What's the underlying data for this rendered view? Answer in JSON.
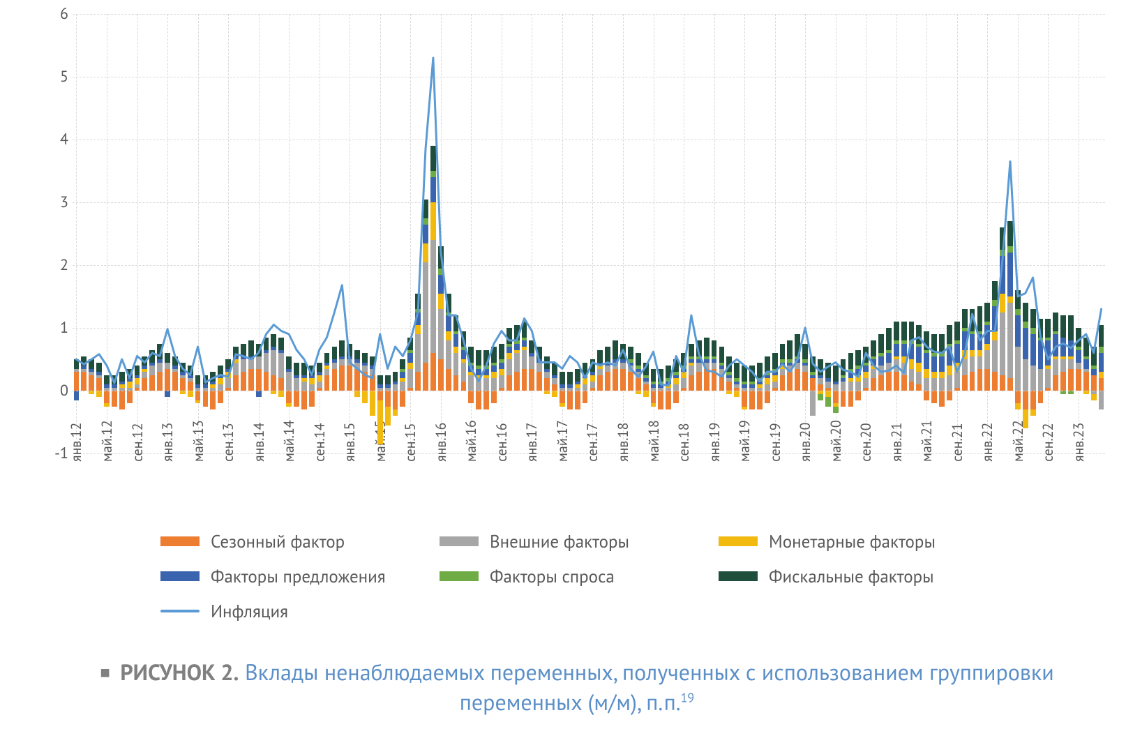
{
  "chart": {
    "type": "stacked-bar-with-line",
    "background_color": "#ffffff",
    "grid_color": "#d9d9d9",
    "y_axis": {
      "min": -1,
      "max": 6,
      "ticks": [
        -1,
        0,
        1,
        2,
        3,
        4,
        5,
        6
      ],
      "label_fontsize": 22,
      "label_color": "#595959"
    },
    "x_axis": {
      "labels": [
        "янв.12",
        "май.12",
        "сен.12",
        "янв.13",
        "май.13",
        "сен.13",
        "янв.14",
        "май.14",
        "сен.14",
        "янв.15",
        "май.15",
        "сен.15",
        "янв.16",
        "май.16",
        "сен.16",
        "янв.17",
        "май.17",
        "сен.17",
        "янв.18",
        "май.18",
        "сен.18",
        "янв.19",
        "май.19",
        "сен.19",
        "янв.20",
        "май.20",
        "сен.20",
        "янв.21",
        "май.21",
        "сен.21",
        "янв.22",
        "май.22",
        "сен.22",
        "янв.23"
      ],
      "label_fontsize": 20,
      "label_color": "#595959",
      "label_step_months": 4
    },
    "series_colors": {
      "seasonal": "#ed7d31",
      "external": "#a6a6a6",
      "monetary": "#f2b90f",
      "supply": "#3a64ad",
      "demand": "#6fac46",
      "fiscal": "#1f4e3d",
      "inflation": "#5b9bd5"
    },
    "series_labels": {
      "seasonal": "Сезонный фактор",
      "external": "Внешние факторы",
      "monetary": "Монетарные факторы",
      "supply": "Факторы предложения",
      "demand": "Факторы спроса",
      "fiscal": "Фискальные факторы",
      "inflation": "Инфляция"
    },
    "line_width": 3,
    "bar_width_ratio": 0.72,
    "n_points": 136,
    "data": {
      "seasonal": [
        0.3,
        0.3,
        0.25,
        0.2,
        -0.2,
        -0.25,
        -0.3,
        -0.2,
        0.05,
        0.2,
        0.25,
        0.3,
        0.35,
        0.3,
        0.2,
        0.15,
        -0.15,
        -0.25,
        -0.3,
        -0.2,
        0.05,
        0.25,
        0.3,
        0.35,
        0.35,
        0.3,
        0.25,
        0.2,
        -0.2,
        -0.25,
        -0.3,
        -0.25,
        0.05,
        0.25,
        0.35,
        0.4,
        0.4,
        0.35,
        0.3,
        0.25,
        -0.15,
        -0.25,
        -0.3,
        -0.25,
        0.05,
        0.3,
        0.45,
        0.6,
        0.5,
        0.35,
        0.25,
        0.15,
        -0.2,
        -0.3,
        -0.3,
        -0.2,
        0.05,
        0.25,
        0.3,
        0.35,
        0.35,
        0.3,
        0.2,
        0.1,
        -0.2,
        -0.3,
        -0.3,
        -0.2,
        0.05,
        0.25,
        0.3,
        0.35,
        0.35,
        0.3,
        0.2,
        0.1,
        -0.2,
        -0.3,
        -0.3,
        -0.2,
        0.05,
        0.25,
        0.3,
        0.35,
        0.35,
        0.25,
        0.15,
        0.05,
        -0.25,
        -0.3,
        -0.3,
        -0.2,
        0.05,
        0.25,
        0.3,
        0.35,
        0.3,
        0.2,
        0.1,
        0.05,
        -0.2,
        -0.25,
        -0.25,
        -0.15,
        0.05,
        0.2,
        0.25,
        0.3,
        0.3,
        0.25,
        0.15,
        0.1,
        -0.15,
        -0.2,
        -0.25,
        -0.15,
        0.05,
        0.25,
        0.3,
        0.35,
        0.35,
        0.3,
        0.25,
        0.2,
        -0.2,
        -0.3,
        -0.3,
        -0.2,
        0.05,
        0.25,
        0.3,
        0.35,
        0.35,
        0.3,
        0.25,
        0.2
      ],
      "external": [
        0.05,
        0.05,
        0.05,
        0.05,
        0.05,
        0.05,
        0.05,
        0.05,
        0.05,
        0.1,
        0.15,
        0.15,
        0.1,
        0.05,
        0.05,
        0.05,
        0.05,
        0.05,
        0.05,
        0.1,
        0.15,
        0.2,
        0.2,
        0.15,
        0.2,
        0.3,
        0.4,
        0.4,
        0.3,
        0.2,
        0.15,
        0.1,
        0.1,
        0.1,
        0.1,
        0.1,
        0.1,
        0.1,
        0.1,
        0.1,
        0.05,
        0.05,
        0.1,
        0.15,
        0.3,
        0.6,
        1.6,
        1.8,
        0.8,
        0.45,
        0.35,
        0.3,
        0.25,
        0.2,
        0.2,
        0.2,
        0.2,
        0.25,
        0.3,
        0.3,
        0.2,
        0.15,
        0.1,
        0.1,
        0.05,
        0.05,
        0.05,
        0.1,
        0.1,
        0.1,
        0.1,
        0.1,
        0.1,
        0.1,
        0.1,
        0.05,
        0.05,
        0.05,
        0.05,
        0.1,
        0.15,
        0.15,
        0.15,
        0.1,
        0.1,
        0.1,
        0.05,
        0.05,
        0.05,
        0.05,
        0.05,
        0.1,
        0.1,
        0.1,
        0.1,
        0.1,
        0.1,
        -0.4,
        0.1,
        0.1,
        0.1,
        0.15,
        0.15,
        0.15,
        0.15,
        0.15,
        0.15,
        0.15,
        0.2,
        0.2,
        0.2,
        0.2,
        0.2,
        0.2,
        0.2,
        0.25,
        0.25,
        0.25,
        0.25,
        0.2,
        0.3,
        0.5,
        1.0,
        1.2,
        0.7,
        0.5,
        0.4,
        0.35,
        0.3,
        0.25,
        0.2,
        0.15,
        0.1,
        0.05,
        -0.05,
        -0.3
      ],
      "monetary": [
        0.0,
        0.0,
        -0.05,
        -0.1,
        -0.05,
        0.0,
        0.05,
        0.1,
        0.1,
        0.05,
        0.0,
        0.0,
        0.0,
        0.0,
        -0.05,
        -0.1,
        -0.05,
        0.0,
        0.05,
        0.1,
        0.1,
        0.05,
        0.0,
        0.0,
        0.0,
        0.0,
        -0.05,
        -0.1,
        -0.05,
        0.0,
        0.05,
        0.1,
        0.1,
        0.05,
        0.0,
        0.0,
        0.0,
        -0.1,
        -0.2,
        -0.4,
        -0.7,
        -0.3,
        -0.1,
        0.05,
        0.1,
        0.15,
        0.3,
        0.6,
        0.25,
        0.15,
        0.1,
        0.05,
        0.05,
        0.05,
        0.05,
        0.1,
        0.1,
        0.1,
        0.05,
        0.05,
        0.0,
        0.0,
        -0.05,
        -0.1,
        -0.05,
        0.0,
        0.05,
        0.1,
        0.1,
        0.05,
        0.0,
        0.0,
        0.0,
        0.0,
        -0.05,
        -0.1,
        -0.05,
        0.0,
        0.05,
        0.1,
        0.1,
        0.05,
        0.0,
        0.0,
        0.0,
        0.0,
        -0.05,
        -0.1,
        -0.05,
        0.0,
        0.05,
        0.1,
        0.1,
        0.05,
        0.0,
        0.0,
        0.0,
        0.0,
        -0.05,
        -0.1,
        -0.05,
        0.0,
        0.05,
        0.1,
        0.1,
        0.05,
        0.0,
        0.0,
        0.05,
        0.1,
        0.15,
        0.15,
        0.15,
        0.1,
        0.1,
        0.15,
        0.15,
        0.15,
        0.1,
        0.1,
        0.1,
        0.15,
        0.3,
        0.1,
        -0.1,
        -0.3,
        -0.1,
        0.0,
        0.05,
        0.05,
        0.05,
        0.05,
        0.0,
        -0.05,
        -0.1,
        0.1
      ],
      "supply": [
        -0.15,
        0.05,
        0.05,
        0.05,
        0.05,
        0.05,
        0.05,
        0.05,
        0.05,
        0.05,
        0.05,
        0.05,
        -0.1,
        0.05,
        0.05,
        0.05,
        0.05,
        0.05,
        0.05,
        0.05,
        0.05,
        0.05,
        0.05,
        0.05,
        -0.1,
        0.05,
        0.05,
        0.05,
        0.05,
        0.05,
        0.05,
        0.05,
        0.05,
        0.05,
        0.05,
        0.05,
        0.05,
        0.05,
        0.05,
        0.05,
        0.05,
        0.05,
        0.05,
        0.1,
        0.15,
        0.2,
        0.3,
        0.4,
        0.3,
        0.25,
        0.2,
        0.15,
        0.1,
        0.1,
        0.1,
        0.1,
        0.1,
        0.1,
        0.1,
        0.1,
        0.05,
        0.05,
        0.05,
        0.05,
        0.05,
        0.05,
        0.05,
        0.05,
        0.05,
        0.05,
        0.05,
        0.05,
        0.05,
        0.05,
        0.05,
        0.05,
        0.05,
        0.05,
        0.05,
        0.05,
        0.05,
        0.05,
        0.05,
        0.05,
        0.05,
        0.05,
        0.05,
        0.05,
        0.05,
        0.05,
        0.05,
        0.05,
        0.05,
        0.05,
        0.05,
        0.05,
        0.05,
        0.05,
        0.05,
        0.05,
        0.05,
        0.05,
        0.1,
        0.1,
        0.1,
        0.1,
        0.15,
        0.15,
        0.2,
        0.2,
        0.25,
        0.25,
        0.25,
        0.25,
        0.25,
        0.3,
        0.3,
        0.3,
        0.25,
        0.25,
        0.3,
        0.4,
        0.6,
        0.7,
        0.5,
        0.5,
        0.5,
        0.45,
        0.4,
        0.35,
        0.3,
        0.25,
        0.2,
        0.15,
        0.1,
        0.3
      ],
      "demand": [
        0.0,
        0.0,
        0.0,
        0.0,
        0.0,
        0.0,
        0.0,
        0.0,
        0.0,
        0.0,
        0.0,
        0.0,
        0.0,
        0.0,
        0.0,
        0.0,
        0.0,
        0.0,
        0.0,
        0.0,
        0.0,
        0.0,
        0.0,
        0.0,
        0.0,
        0.0,
        0.0,
        0.0,
        0.0,
        0.0,
        0.0,
        0.0,
        0.0,
        0.0,
        0.0,
        0.0,
        0.0,
        0.0,
        0.0,
        0.0,
        0.0,
        0.0,
        0.0,
        0.05,
        0.05,
        0.05,
        0.1,
        0.1,
        0.1,
        0.05,
        0.05,
        0.05,
        0.05,
        0.05,
        0.05,
        0.05,
        0.05,
        0.05,
        0.05,
        0.05,
        0.0,
        0.0,
        0.0,
        0.0,
        0.0,
        0.0,
        0.0,
        0.0,
        0.0,
        0.0,
        0.0,
        0.0,
        0.0,
        0.05,
        0.05,
        0.05,
        0.05,
        0.05,
        0.05,
        0.05,
        0.05,
        0.05,
        0.05,
        0.05,
        0.05,
        0.05,
        0.05,
        0.05,
        0.05,
        0.05,
        0.05,
        0.05,
        0.05,
        0.05,
        0.05,
        0.05,
        0.05,
        0.05,
        -0.1,
        -0.15,
        -0.1,
        0.05,
        0.05,
        0.05,
        0.05,
        0.05,
        0.05,
        0.05,
        0.05,
        0.05,
        0.05,
        0.05,
        0.05,
        0.05,
        0.05,
        0.05,
        0.05,
        0.05,
        0.05,
        0.05,
        0.05,
        0.1,
        0.1,
        0.1,
        0.1,
        0.1,
        0.1,
        0.05,
        0.05,
        0.05,
        -0.05,
        -0.05,
        0.05,
        0.05,
        0.05,
        0.1
      ],
      "fiscal": [
        0.15,
        0.15,
        0.15,
        0.15,
        0.15,
        0.15,
        0.15,
        0.15,
        0.15,
        0.15,
        0.2,
        0.25,
        0.15,
        0.15,
        0.15,
        0.15,
        0.15,
        0.15,
        0.15,
        0.15,
        0.15,
        0.15,
        0.2,
        0.25,
        0.2,
        0.2,
        0.2,
        0.2,
        0.2,
        0.2,
        0.2,
        0.15,
        0.15,
        0.15,
        0.2,
        0.25,
        0.2,
        0.15,
        0.15,
        0.15,
        0.15,
        0.15,
        0.15,
        0.15,
        0.2,
        0.25,
        0.3,
        0.4,
        0.35,
        0.3,
        0.25,
        0.25,
        0.25,
        0.25,
        0.25,
        0.25,
        0.25,
        0.25,
        0.25,
        0.25,
        0.2,
        0.2,
        0.2,
        0.2,
        0.2,
        0.2,
        0.2,
        0.2,
        0.2,
        0.2,
        0.25,
        0.3,
        0.25,
        0.2,
        0.2,
        0.2,
        0.2,
        0.2,
        0.2,
        0.2,
        0.2,
        0.2,
        0.25,
        0.3,
        0.25,
        0.25,
        0.25,
        0.25,
        0.25,
        0.25,
        0.25,
        0.25,
        0.25,
        0.25,
        0.3,
        0.35,
        0.25,
        0.25,
        0.25,
        0.25,
        0.25,
        0.25,
        0.25,
        0.25,
        0.25,
        0.25,
        0.3,
        0.35,
        0.3,
        0.3,
        0.3,
        0.3,
        0.3,
        0.3,
        0.3,
        0.3,
        0.3,
        0.3,
        0.35,
        0.4,
        0.3,
        0.3,
        0.35,
        0.4,
        0.3,
        0.3,
        0.3,
        0.3,
        0.3,
        0.3,
        0.35,
        0.4,
        0.3,
        0.3,
        0.3,
        0.35
      ],
      "inflation": [
        0.5,
        0.42,
        0.5,
        0.58,
        0.4,
        0.12,
        0.5,
        0.2,
        0.55,
        0.45,
        0.6,
        0.55,
        0.98,
        0.55,
        0.35,
        0.25,
        0.7,
        0.13,
        0.2,
        0.25,
        0.22,
        0.58,
        0.55,
        0.5,
        0.6,
        0.9,
        1.05,
        0.95,
        0.9,
        0.65,
        0.5,
        0.25,
        0.65,
        0.85,
        1.25,
        1.68,
        0.45,
        0.35,
        0.25,
        0.2,
        0.9,
        0.35,
        0.7,
        0.55,
        0.8,
        1.25,
        3.85,
        5.3,
        2.22,
        1.2,
        1.2,
        0.8,
        0.35,
        0.15,
        0.4,
        0.75,
        0.95,
        0.8,
        0.8,
        1.15,
        0.95,
        0.45,
        0.45,
        0.45,
        0.35,
        0.55,
        0.45,
        0.2,
        0.45,
        0.4,
        0.45,
        0.4,
        0.65,
        0.35,
        0.22,
        0.38,
        0.62,
        0.1,
        0.08,
        0.55,
        0.3,
        1.2,
        0.58,
        0.32,
        0.3,
        0.22,
        0.4,
        0.5,
        0.4,
        0.3,
        0.15,
        0.3,
        0.3,
        0.42,
        0.3,
        0.5,
        1.0,
        0.43,
        0.3,
        0.38,
        0.45,
        0.33,
        0.3,
        0.22,
        0.6,
        0.4,
        0.3,
        0.32,
        0.4,
        0.28,
        0.8,
        0.85,
        0.7,
        0.62,
        0.6,
        0.7,
        0.3,
        0.58,
        1.22,
        0.8,
        0.95,
        0.95,
        2.1,
        3.65,
        1.5,
        1.55,
        1.8,
        0.85,
        0.5,
        0.7,
        0.75,
        0.68,
        0.8,
        0.9,
        0.6,
        1.3
      ]
    }
  },
  "legend_order": [
    "seasonal",
    "external",
    "monetary",
    "supply",
    "demand",
    "fiscal",
    "inflation"
  ],
  "caption": {
    "lead": "РИСУНОК 2.",
    "text": "Вклады ненаблюдаемых переменных, полученных с использованием группировки переменных (м/м), п.п.",
    "footnote": "19",
    "lead_color": "#808080",
    "text_color": "#5b8fc7",
    "fontsize": 32
  }
}
